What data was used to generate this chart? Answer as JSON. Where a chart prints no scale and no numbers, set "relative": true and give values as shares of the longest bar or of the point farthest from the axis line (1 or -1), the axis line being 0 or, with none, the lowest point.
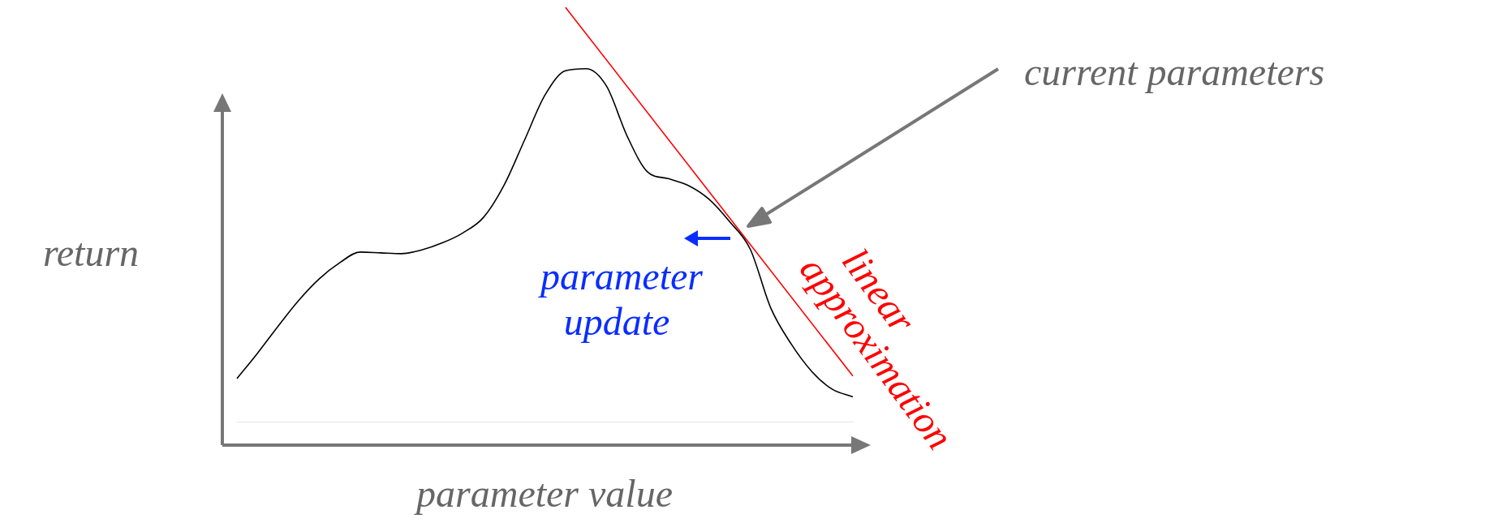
{
  "chart_data": {
    "type": "line",
    "relative": true,
    "xlabel": "parameter value",
    "ylabel": "return",
    "marker": "none",
    "legend": false,
    "categories": [
      null,
      null,
      null,
      null,
      null,
      null,
      null,
      null,
      null,
      null,
      null,
      null,
      null,
      null,
      null,
      null,
      null,
      null,
      null,
      null,
      null,
      null,
      null,
      null,
      null,
      null,
      null,
      null,
      null,
      null,
      null
    ],
    "series": [
      {
        "color": "#000000",
        "values": [
          0.105,
          0.166,
          0.231,
          0.293,
          0.345,
          0.384,
          0.41,
          0.408,
          0.406,
          0.415,
          0.432,
          0.456,
          0.493,
          0.57,
          0.679,
          0.788,
          0.847,
          0.852,
          0.81,
          0.69,
          0.603,
          0.587,
          0.57,
          0.537,
          0.483,
          0.417,
          0.275,
          0.188,
          0.122,
          0.079,
          0.061
        ]
      },
      {
        "color": "#ff0000",
        "values": [
          null,
          null,
          null,
          null,
          null,
          null,
          null,
          null,
          null,
          null,
          null,
          null,
          null,
          null,
          null,
          null,
          1,
          null,
          null,
          null,
          null,
          null,
          null,
          null,
          null,
          null,
          null,
          null,
          null,
          null,
          0.111
        ]
      }
    ],
    "annotations": [
      "current parameters",
      "linear approximation",
      "parameter update"
    ]
  }
}
